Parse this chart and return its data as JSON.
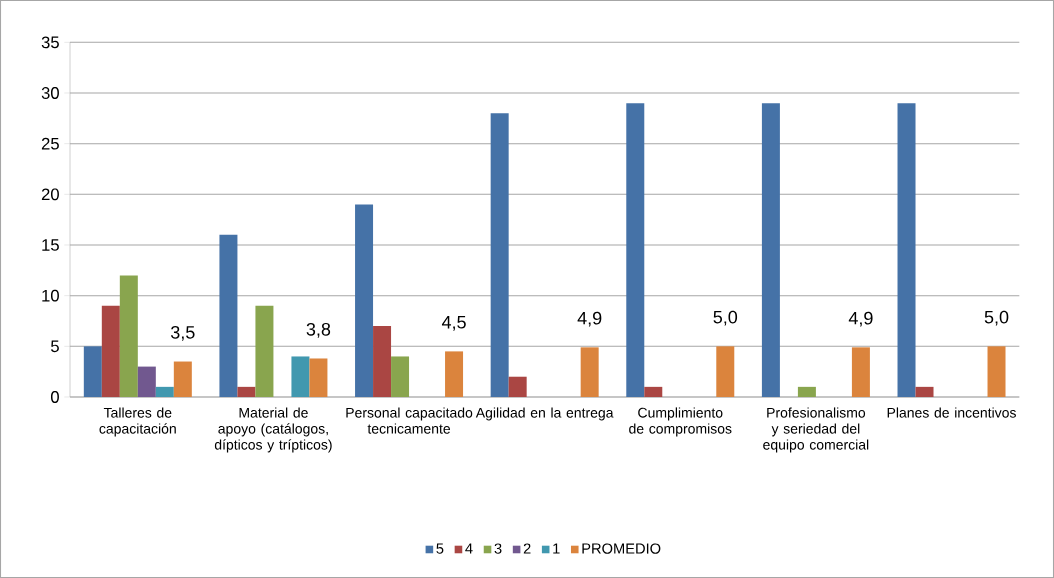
{
  "chart_data": {
    "type": "bar",
    "categories": [
      "Talleres de capacitación",
      "Material de apoyo (catálogos, dípticos y trípticos)",
      "Personal capacitado tecnicamente",
      "Agilidad en la entrega",
      "Cumplimiento de compromisos",
      "Profesionalismo y seriedad del equipo comercial",
      "Planes de incentivos"
    ],
    "series": [
      {
        "name": "5",
        "color": "#4572a7",
        "values": [
          5,
          16,
          19,
          28,
          29,
          29,
          29
        ]
      },
      {
        "name": "4",
        "color": "#aa4643",
        "values": [
          9,
          1,
          7,
          2,
          1,
          null,
          1
        ]
      },
      {
        "name": "3",
        "color": "#89a54e",
        "values": [
          12,
          9,
          4,
          null,
          null,
          1,
          null
        ]
      },
      {
        "name": "2",
        "color": "#71588f",
        "values": [
          3,
          null,
          null,
          null,
          null,
          null,
          null
        ]
      },
      {
        "name": "1",
        "color": "#4198af",
        "values": [
          1,
          4,
          null,
          null,
          null,
          null,
          null
        ]
      },
      {
        "name": "PROMEDIO",
        "color": "#db843d",
        "values": [
          3.5,
          3.8,
          4.5,
          4.9,
          5.0,
          4.9,
          5.0
        ],
        "value_labels": [
          "3,5",
          "3,8",
          "4,5",
          "4,9",
          "5,0",
          "4,9",
          "5,0"
        ]
      }
    ],
    "ylim": [
      0,
      35
    ],
    "yticks": [
      0,
      5,
      10,
      15,
      20,
      25,
      30,
      35
    ],
    "grid": "y",
    "legend": "bottom"
  }
}
